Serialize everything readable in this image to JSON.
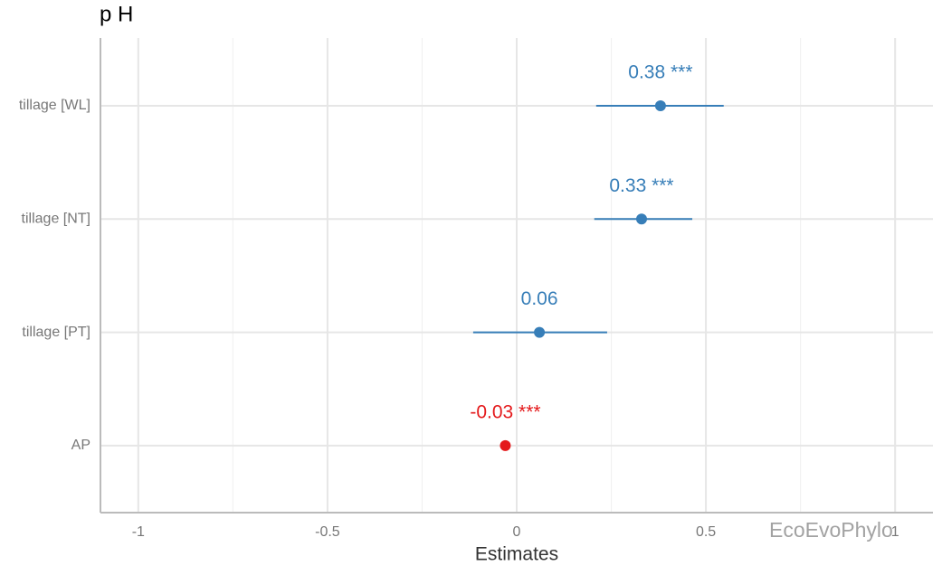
{
  "chart_data": {
    "type": "forest",
    "title": "p H",
    "xlabel": "Estimates",
    "categories": [
      "tillage [WL]",
      "tillage [NT]",
      "tillage [PT]",
      "AP"
    ],
    "values": [
      0.38,
      0.33,
      0.06,
      -0.03
    ],
    "value_labels": [
      "0.38 ***",
      "0.33 ***",
      "0.06",
      "-0.03 ***"
    ],
    "ci_low": [
      0.21,
      0.205,
      -0.115,
      -0.035
    ],
    "ci_high": [
      0.547,
      0.464,
      0.239,
      -0.025
    ],
    "colors": [
      "#377eb8",
      "#377eb8",
      "#377eb8",
      "#e41a1c"
    ],
    "xlim": [
      -1.1,
      1.1
    ],
    "xticks": [
      -1,
      -0.5,
      0,
      0.5,
      1
    ],
    "minor_xticks": [
      -0.75,
      -0.25,
      0.25,
      0.75
    ],
    "grid": true,
    "watermark": "EcoEvoPhylo"
  }
}
